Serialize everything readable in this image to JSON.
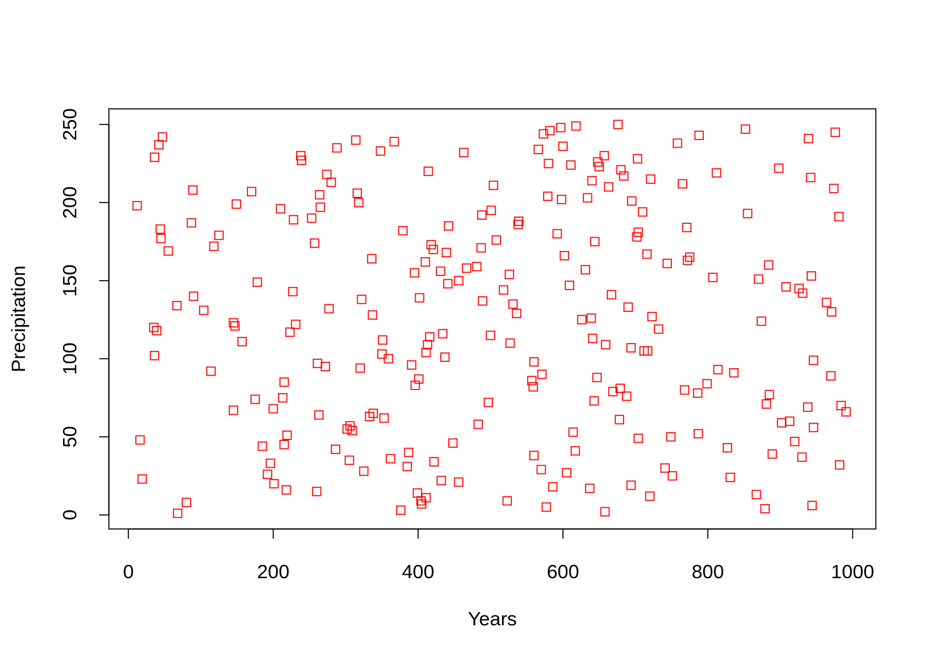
{
  "chart_data": {
    "type": "scatter",
    "x_label": "Years",
    "y_label": "Precipitation",
    "xlim": [
      -27,
      1032
    ],
    "ylim": [
      -9,
      260
    ],
    "xticks": [
      0,
      200,
      400,
      600,
      800,
      1000
    ],
    "yticks": [
      0,
      50,
      100,
      150,
      200,
      250
    ],
    "grid": false,
    "series": [
      {
        "color": "#ff0000",
        "x": [
          12,
          16,
          19,
          35,
          39,
          36,
          36,
          42,
          47,
          44,
          45,
          55,
          67,
          68,
          80,
          89,
          87,
          90,
          104,
          114,
          118,
          125,
          145,
          147,
          145,
          149,
          157,
          170,
          175,
          178,
          185,
          192,
          196,
          200,
          201,
          210,
          213,
          215,
          215,
          219,
          218,
          223,
          227,
          228,
          231,
          238,
          239,
          253,
          257,
          260,
          261,
          263,
          264,
          265,
          272,
          274,
          277,
          280,
          286,
          288,
          302,
          305,
          306,
          309,
          314,
          316,
          318,
          320,
          322,
          325,
          333,
          336,
          337,
          338,
          348,
          350,
          351,
          353,
          359,
          362,
          367,
          376,
          379,
          385,
          387,
          391,
          395,
          396,
          399,
          401,
          402,
          404,
          405,
          411,
          410,
          411,
          413,
          414,
          416,
          418,
          421,
          422,
          431,
          432,
          434,
          437,
          439,
          441,
          442,
          448,
          456,
          456,
          463,
          467,
          481,
          483,
          487,
          488,
          489,
          497,
          500,
          501,
          504,
          508,
          518,
          523,
          526,
          527,
          531,
          536,
          538,
          539,
          557,
          559,
          560,
          560,
          566,
          570,
          571,
          573,
          577,
          579,
          580,
          582,
          586,
          592,
          597,
          598,
          600,
          602,
          605,
          609,
          611,
          614,
          617,
          618,
          626,
          631,
          634,
          637,
          639,
          640,
          641,
          643,
          644,
          647,
          648,
          650,
          657,
          658,
          659,
          663,
          667,
          669,
          676,
          678,
          679,
          680,
          684,
          688,
          690,
          694,
          694,
          695,
          702,
          704,
          704,
          703,
          710,
          712,
          716,
          717,
          720,
          721,
          723,
          732,
          741,
          744,
          749,
          751,
          758,
          765,
          768,
          771,
          772,
          775,
          786,
          787,
          788,
          799,
          807,
          812,
          814,
          827,
          831,
          836,
          852,
          855,
          867,
          870,
          874,
          879,
          881,
          884,
          885,
          889,
          898,
          902,
          908,
          913,
          920,
          926,
          930,
          931,
          938,
          939,
          942,
          943,
          944,
          946,
          946,
          964,
          970,
          971,
          974,
          976,
          981,
          982,
          984,
          991
        ],
        "values": [
          198,
          48,
          23,
          120,
          118,
          102,
          229,
          237,
          242,
          183,
          177,
          169,
          134,
          1,
          8,
          208,
          187,
          140,
          131,
          92,
          172,
          179,
          123,
          121,
          67,
          199,
          111,
          207,
          74,
          149,
          44,
          26,
          33,
          68,
          20,
          196,
          75,
          85,
          45,
          51,
          16,
          117,
          143,
          189,
          122,
          230,
          227,
          190,
          174,
          15,
          97,
          64,
          205,
          197,
          95,
          218,
          132,
          213,
          42,
          235,
          55,
          35,
          57,
          54,
          240,
          206,
          200,
          94,
          138,
          28,
          63,
          164,
          128,
          65,
          233,
          103,
          112,
          62,
          100,
          36,
          239,
          3,
          182,
          31,
          40,
          96,
          155,
          83,
          14,
          87,
          139,
          9,
          7,
          11,
          162,
          104,
          109,
          220,
          114,
          173,
          170,
          34,
          156,
          22,
          116,
          101,
          168,
          148,
          185,
          46,
          150,
          21,
          232,
          158,
          159,
          58,
          171,
          192,
          137,
          72,
          115,
          195,
          211,
          176,
          144,
          9,
          154,
          110,
          135,
          129,
          186,
          188,
          86,
          82,
          98,
          38,
          234,
          29,
          90,
          244,
          5,
          204,
          225,
          246,
          18,
          180,
          248,
          202,
          236,
          166,
          27,
          147,
          224,
          53,
          41,
          249,
          125,
          157,
          203,
          17,
          126,
          214,
          113,
          73,
          175,
          88,
          226,
          223,
          230,
          2,
          109,
          210,
          141,
          79,
          250,
          61,
          81,
          221,
          217,
          76,
          133,
          19,
          107,
          201,
          178,
          181,
          49,
          228,
          194,
          105,
          167,
          105,
          12,
          215,
          127,
          119,
          30,
          161,
          50,
          25,
          238,
          212,
          80,
          184,
          163,
          165,
          78,
          52,
          243,
          84,
          152,
          219,
          93,
          43,
          24,
          91,
          247,
          193,
          13,
          151,
          124,
          4,
          71,
          160,
          77,
          39,
          222,
          59,
          146,
          60,
          47,
          145,
          37,
          142,
          69,
          241,
          216,
          153,
          6,
          99,
          56,
          136,
          89,
          130,
          209,
          245,
          191,
          32,
          70,
          66
        ]
      }
    ]
  }
}
